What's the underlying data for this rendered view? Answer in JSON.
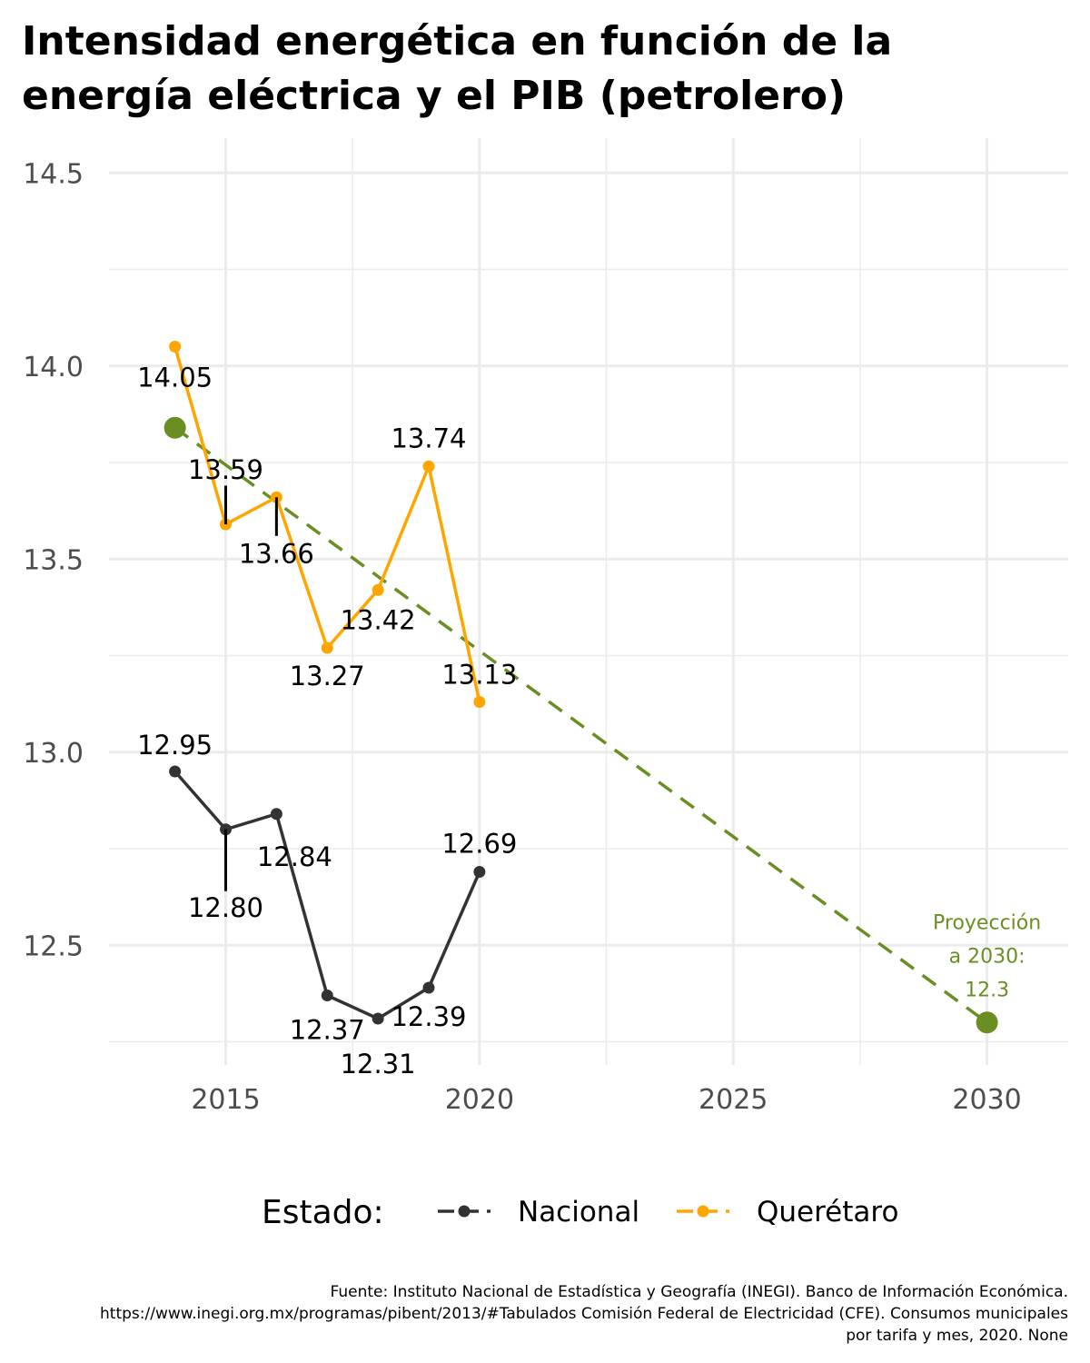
{
  "chart_data": {
    "type": "line",
    "title_lines": [
      "Intensidad energética en función de la",
      "energía eléctrica y el PIB (petrolero)"
    ],
    "xlim": [
      2012.7,
      2031.6
    ],
    "ylim": [
      12.19,
      14.59
    ],
    "x_ticks": [
      2015,
      2020,
      2025,
      2030
    ],
    "x_tick_labels": [
      "2015",
      "2020",
      "2025",
      "2030"
    ],
    "x_minor_ticks": [
      2012.5,
      2017.5,
      2022.5,
      2027.5
    ],
    "y_ticks": [
      12.5,
      13.0,
      13.5,
      14.0,
      14.5
    ],
    "y_tick_labels": [
      "12.5",
      "13.0",
      "13.5",
      "14.0",
      "14.5"
    ],
    "y_minor_ticks": [
      12.25,
      12.75,
      13.25,
      13.75,
      14.25
    ],
    "grid": true,
    "legend_position": "bottom",
    "legend_title": "Estado:",
    "series": [
      {
        "name": "Nacional",
        "color": "#333333",
        "x": [
          2014,
          2015,
          2016,
          2017,
          2018,
          2019,
          2020
        ],
        "y": [
          12.95,
          12.8,
          12.84,
          12.37,
          12.31,
          12.39,
          12.69
        ],
        "labels": [
          "12.95",
          "12.80",
          "12.84",
          "12.37",
          "12.31",
          "12.39",
          "12.69"
        ]
      },
      {
        "name": "Querétaro",
        "color": "#ffa500",
        "x": [
          2014,
          2015,
          2016,
          2017,
          2018,
          2019,
          2020
        ],
        "y": [
          14.05,
          13.59,
          13.66,
          13.27,
          13.42,
          13.74,
          13.13
        ],
        "labels": [
          "14.05",
          "13.59",
          "13.66",
          "13.27",
          "13.42",
          "13.74",
          "13.13"
        ]
      }
    ],
    "projection": {
      "color": "#6b8e23",
      "start": {
        "x": 2014,
        "y": 13.84
      },
      "end": {
        "x": 2030,
        "y": 12.3
      },
      "label_lines": [
        "Proyección",
        "a 2030:",
        "12.3"
      ]
    },
    "caption_lines": [
      "Fuente: Instituto Nacional de Estadística y Geografía (INEGI). Banco de Información Económica.",
      "https://www.inegi.org.mx/programas/pibent/2013/#Tabulados Comisión Federal de Electricidad (CFE). Consumos municipales",
      "por tarifa y mes, 2020. None"
    ]
  }
}
